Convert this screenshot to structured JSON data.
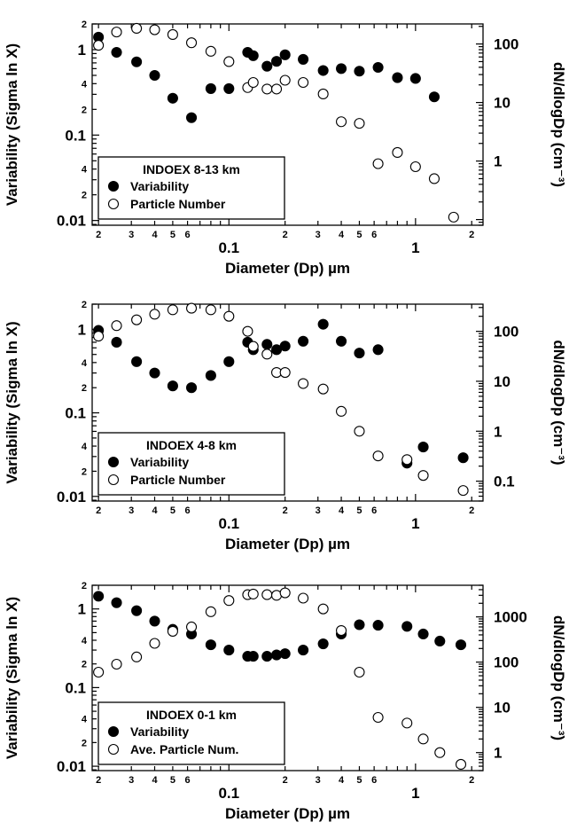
{
  "chart_data": [
    {
      "type": "scatter",
      "legend": {
        "title": "INDOEX  8-13 km",
        "entries": [
          "Variability",
          "Particle Number"
        ],
        "position": "bottom-left"
      },
      "xlabel": "Diameter (Dp) µm",
      "ylabel": "Variability (Sigma ln X)",
      "y2label": "dN/dlogDp (cm⁻³)",
      "xscale": "log",
      "yscale": "log",
      "y2scale": "log",
      "xlim": [
        0.0185,
        2.3
      ],
      "ylim": [
        0.0088,
        2.0
      ],
      "y2lim": [
        0.08,
        220
      ],
      "x_major_ticks": [
        {
          "value": 0.1,
          "label": "0.1"
        },
        {
          "value": 1,
          "label": "1"
        }
      ],
      "x_minor_ticks": [
        {
          "value": 0.02,
          "label": "2"
        },
        {
          "value": 0.03,
          "label": "3"
        },
        {
          "value": 0.04,
          "label": "4"
        },
        {
          "value": 0.05,
          "label": "5"
        },
        {
          "value": 0.06,
          "label": "6"
        },
        {
          "value": 0.2,
          "label": "2"
        },
        {
          "value": 0.3,
          "label": "3"
        },
        {
          "value": 0.4,
          "label": "4"
        },
        {
          "value": 0.5,
          "label": "5"
        },
        {
          "value": 0.6,
          "label": "6"
        },
        {
          "value": 2,
          "label": "2"
        }
      ],
      "y_major_ticks": [
        {
          "value": 0.01,
          "label": "0.01"
        },
        {
          "value": 0.1,
          "label": "0.1"
        },
        {
          "value": 1,
          "label": "1"
        }
      ],
      "y_minor_ticks": [
        {
          "value": 0.02,
          "label": "2"
        },
        {
          "value": 0.04,
          "label": "4"
        },
        {
          "value": 0.2,
          "label": "2"
        },
        {
          "value": 0.4,
          "label": "4"
        },
        {
          "value": 2,
          "label": "2"
        }
      ],
      "y2_major_ticks": [
        {
          "value": 1,
          "label": "1"
        },
        {
          "value": 10,
          "label": "10"
        },
        {
          "value": 100,
          "label": "100"
        }
      ],
      "series": [
        {
          "name": "Variability",
          "marker": "filled-circle",
          "axis": "left",
          "x": [
            0.02,
            0.025,
            0.032,
            0.04,
            0.05,
            0.063,
            0.08,
            0.1,
            0.126,
            0.135,
            0.16,
            0.18,
            0.2,
            0.25,
            0.32,
            0.4,
            0.5,
            0.63,
            0.8,
            1.0,
            1.26
          ],
          "y": [
            1.4,
            0.93,
            0.72,
            0.5,
            0.27,
            0.16,
            0.35,
            0.35,
            0.93,
            0.85,
            0.64,
            0.73,
            0.87,
            0.77,
            0.57,
            0.6,
            0.56,
            0.62,
            0.47,
            0.46,
            0.28
          ]
        },
        {
          "name": "Particle Number",
          "marker": "open-circle",
          "axis": "right",
          "x": [
            0.02,
            0.025,
            0.032,
            0.04,
            0.05,
            0.063,
            0.08,
            0.1,
            0.126,
            0.135,
            0.16,
            0.18,
            0.2,
            0.25,
            0.32,
            0.4,
            0.5,
            0.63,
            0.8,
            1.0,
            1.26,
            1.6
          ],
          "y": [
            95,
            160,
            185,
            175,
            145,
            105,
            75,
            50,
            18,
            22,
            17,
            17,
            24,
            22,
            14,
            4.7,
            4.4,
            0.9,
            1.4,
            0.8,
            0.5,
            0.11
          ]
        }
      ]
    },
    {
      "type": "scatter",
      "legend": {
        "title": "INDOEX 4-8 km",
        "entries": [
          "Variability",
          "Particle Number"
        ],
        "position": "bottom-left"
      },
      "xlabel": "Diameter (Dp) µm",
      "ylabel": "Variability (Sigma ln X)",
      "y2label": "dN/dlogDp (cm⁻³)",
      "xscale": "log",
      "yscale": "log",
      "y2scale": "log",
      "xlim": [
        0.0185,
        2.3
      ],
      "ylim": [
        0.0088,
        2.0
      ],
      "y2lim": [
        0.04,
        350
      ],
      "x_major_ticks": [
        {
          "value": 0.1,
          "label": "0.1"
        },
        {
          "value": 1,
          "label": "1"
        }
      ],
      "x_minor_ticks": [
        {
          "value": 0.02,
          "label": "2"
        },
        {
          "value": 0.03,
          "label": "3"
        },
        {
          "value": 0.04,
          "label": "4"
        },
        {
          "value": 0.05,
          "label": "5"
        },
        {
          "value": 0.06,
          "label": "6"
        },
        {
          "value": 0.2,
          "label": "2"
        },
        {
          "value": 0.3,
          "label": "3"
        },
        {
          "value": 0.4,
          "label": "4"
        },
        {
          "value": 0.5,
          "label": "5"
        },
        {
          "value": 0.6,
          "label": "6"
        },
        {
          "value": 2,
          "label": "2"
        }
      ],
      "y_major_ticks": [
        {
          "value": 0.01,
          "label": "0.01"
        },
        {
          "value": 0.1,
          "label": "0.1"
        },
        {
          "value": 1,
          "label": "1"
        }
      ],
      "y_minor_ticks": [
        {
          "value": 0.02,
          "label": "2"
        },
        {
          "value": 0.04,
          "label": "4"
        },
        {
          "value": 0.2,
          "label": "2"
        },
        {
          "value": 0.4,
          "label": "4"
        },
        {
          "value": 2,
          "label": "2"
        }
      ],
      "y2_major_ticks": [
        {
          "value": 0.1,
          "label": "0.1"
        },
        {
          "value": 1,
          "label": "1"
        },
        {
          "value": 10,
          "label": "10"
        },
        {
          "value": 100,
          "label": "100"
        }
      ],
      "series": [
        {
          "name": "Variability",
          "marker": "filled-circle",
          "axis": "left",
          "x": [
            0.02,
            0.025,
            0.032,
            0.04,
            0.05,
            0.063,
            0.08,
            0.1,
            0.126,
            0.135,
            0.16,
            0.18,
            0.2,
            0.25,
            0.32,
            0.4,
            0.5,
            0.63,
            0.9,
            1.1,
            1.8
          ],
          "y": [
            0.97,
            0.7,
            0.41,
            0.3,
            0.21,
            0.2,
            0.28,
            0.41,
            0.7,
            0.57,
            0.66,
            0.57,
            0.63,
            0.72,
            1.15,
            0.72,
            0.52,
            0.57,
            0.025,
            0.039,
            0.029
          ]
        },
        {
          "name": "Particle Number",
          "marker": "open-circle",
          "axis": "right",
          "x": [
            0.02,
            0.025,
            0.032,
            0.04,
            0.05,
            0.063,
            0.08,
            0.1,
            0.126,
            0.135,
            0.16,
            0.18,
            0.2,
            0.25,
            0.32,
            0.4,
            0.5,
            0.63,
            0.9,
            1.1,
            1.8
          ],
          "y": [
            80,
            130,
            170,
            220,
            270,
            290,
            270,
            200,
            100,
            50,
            35,
            15,
            15,
            9,
            7,
            2.5,
            1,
            0.32,
            0.27,
            0.13,
            0.065
          ]
        }
      ]
    },
    {
      "type": "scatter",
      "legend": {
        "title": "INDOEX  0-1 km",
        "entries": [
          "Variability",
          "Ave. Particle Num."
        ],
        "position": "bottom-left"
      },
      "xlabel": "Diameter (Dp) µm",
      "ylabel": "Variability (Sigma ln X)",
      "y2label": "dN/dlogDp (cm⁻³)",
      "xscale": "log",
      "yscale": "log",
      "y2scale": "log",
      "xlim": [
        0.0185,
        2.3
      ],
      "ylim": [
        0.0088,
        2.0
      ],
      "y2lim": [
        0.4,
        5000
      ],
      "x_major_ticks": [
        {
          "value": 0.1,
          "label": "0.1"
        },
        {
          "value": 1,
          "label": "1"
        }
      ],
      "x_minor_ticks": [
        {
          "value": 0.02,
          "label": "2"
        },
        {
          "value": 0.03,
          "label": "3"
        },
        {
          "value": 0.04,
          "label": "4"
        },
        {
          "value": 0.05,
          "label": "5"
        },
        {
          "value": 0.06,
          "label": "6"
        },
        {
          "value": 0.2,
          "label": "2"
        },
        {
          "value": 0.3,
          "label": "3"
        },
        {
          "value": 0.4,
          "label": "4"
        },
        {
          "value": 0.5,
          "label": "5"
        },
        {
          "value": 0.6,
          "label": "6"
        },
        {
          "value": 2,
          "label": "2"
        }
      ],
      "y_major_ticks": [
        {
          "value": 0.01,
          "label": "0.01"
        },
        {
          "value": 0.1,
          "label": "0.1"
        },
        {
          "value": 1,
          "label": "1"
        }
      ],
      "y_minor_ticks": [
        {
          "value": 0.02,
          "label": "2"
        },
        {
          "value": 0.04,
          "label": "4"
        },
        {
          "value": 0.2,
          "label": "2"
        },
        {
          "value": 0.4,
          "label": "4"
        },
        {
          "value": 2,
          "label": "2"
        }
      ],
      "y2_major_ticks": [
        {
          "value": 1,
          "label": "1"
        },
        {
          "value": 10,
          "label": "10"
        },
        {
          "value": 100,
          "label": "100"
        },
        {
          "value": 1000,
          "label": "1000"
        }
      ],
      "series": [
        {
          "name": "Variability",
          "marker": "filled-circle",
          "axis": "left",
          "x": [
            0.02,
            0.025,
            0.032,
            0.04,
            0.05,
            0.063,
            0.08,
            0.1,
            0.126,
            0.135,
            0.16,
            0.18,
            0.2,
            0.25,
            0.32,
            0.4,
            0.5,
            0.63,
            0.9,
            1.1,
            1.35,
            1.75
          ],
          "y": [
            1.45,
            1.2,
            0.95,
            0.7,
            0.55,
            0.48,
            0.35,
            0.3,
            0.25,
            0.25,
            0.25,
            0.26,
            0.27,
            0.3,
            0.36,
            0.48,
            0.63,
            0.62,
            0.6,
            0.48,
            0.39,
            0.35
          ]
        },
        {
          "name": "Ave. Particle Num.",
          "marker": "open-circle",
          "axis": "right",
          "x": [
            0.02,
            0.025,
            0.032,
            0.04,
            0.05,
            0.063,
            0.08,
            0.1,
            0.126,
            0.135,
            0.16,
            0.18,
            0.2,
            0.25,
            0.32,
            0.4,
            0.5,
            0.63,
            0.9,
            1.1,
            1.35,
            1.75
          ],
          "y": [
            60,
            90,
            130,
            260,
            480,
            600,
            1300,
            2300,
            3100,
            3200,
            3100,
            3000,
            3400,
            2600,
            1500,
            500,
            60,
            6,
            4.5,
            2,
            1,
            0.55
          ]
        }
      ]
    }
  ]
}
